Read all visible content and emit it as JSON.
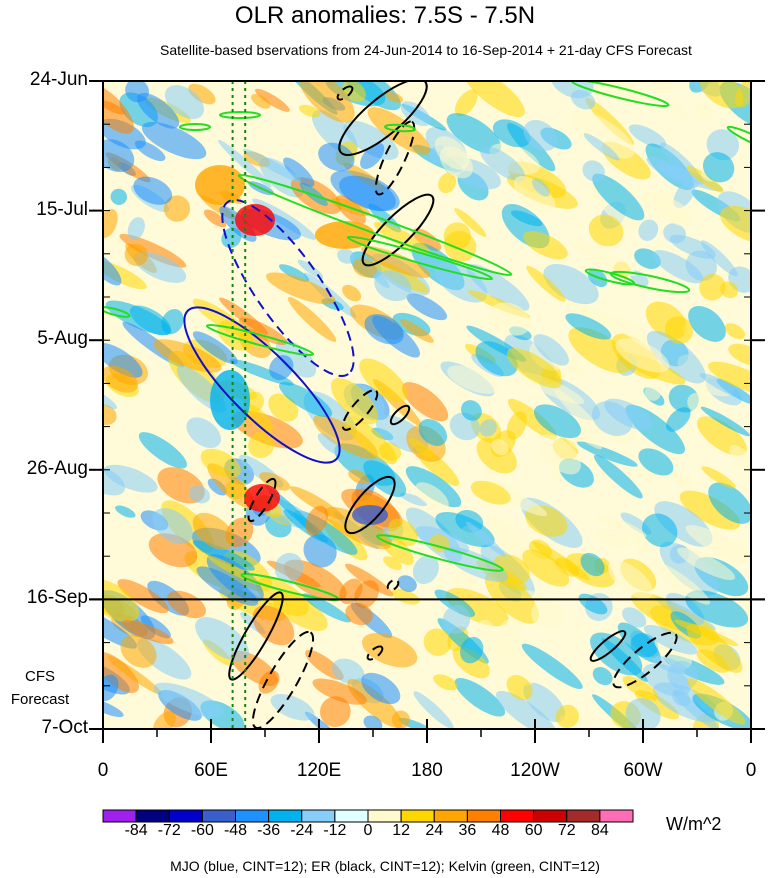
{
  "title": "OLR anomalies: 7.5S - 7.5N",
  "subtitle": "Satellite-based bservations from 24-Jun-2014 to 16-Sep-2014 + 21-day CFS Forecast",
  "forecast_label_line1": "CFS",
  "forecast_label_line2": "Forecast",
  "units": "W/m^2",
  "footnote": "MJO (blue, CINT=12); ER (black, CINT=12); Kelvin (green, CINT=12)",
  "chart_data": {
    "type": "heatmap",
    "title": "OLR anomalies: 7.5S - 7.5N",
    "y_tick_labels": [
      "24-Jun",
      "15-Jul",
      "5-Aug",
      "26-Aug",
      "16-Sep",
      "7-Oct"
    ],
    "x_tick_labels": [
      "0",
      "60E",
      "120E",
      "180",
      "120W",
      "60W",
      "0"
    ],
    "x_range_degE": [
      0,
      360
    ],
    "y_range_dates": [
      "24-Jun-2014",
      "7-Oct-2014"
    ],
    "forecast_start": "16-Sep-2014",
    "colorbar_labels": [
      "-84",
      "-72",
      "-60",
      "-48",
      "-36",
      "-24",
      "-12",
      "0",
      "12",
      "24",
      "36",
      "48",
      "60",
      "72",
      "84"
    ],
    "colorbar_colors": [
      "#a020f0",
      "#000080",
      "#0000cd",
      "#3a5fcd",
      "#1e90ff",
      "#00b2ee",
      "#87cefa",
      "#e0ffff",
      "#fffacd",
      "#ffd700",
      "#ffa500",
      "#ff7f00",
      "#ff0000",
      "#cd0000",
      "#a52a2a",
      "#ff6eb4"
    ],
    "reference_lines_lon": [
      72,
      79
    ],
    "overlays": {
      "MJO": {
        "color": "#1010c8"
      },
      "ER": {
        "color": "#000000"
      },
      "Kelvin": {
        "color": "#22dd22"
      }
    }
  }
}
